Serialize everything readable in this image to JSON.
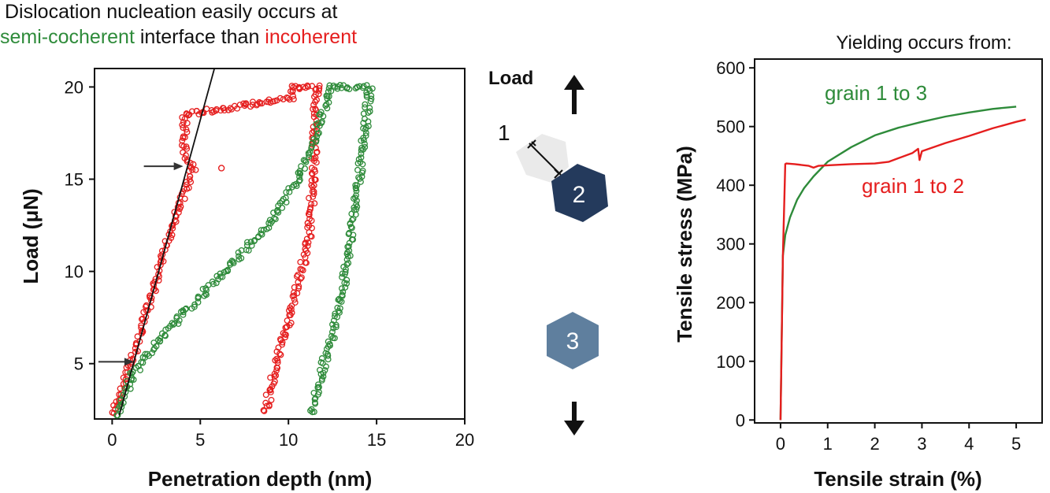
{
  "headline": {
    "line1": "Dislocation nucleation easily occurs at",
    "green_part": "semi-cocherent",
    "middle_part": " interface than ",
    "red_part": "incoherent"
  },
  "schematic": {
    "load_label": "Load",
    "grain1_label": "1",
    "grain2_label": "2",
    "grain3_label": "3"
  },
  "colors": {
    "semi_coherent": "#2e8b3a",
    "incoherent": "#e51e1e",
    "grain2": "#243a5c",
    "grain3": "#5f7f9e",
    "grain1": "#e6e6e6"
  },
  "chart_data": [
    {
      "type": "scatter",
      "xlabel": "Penetration depth (nm)",
      "ylabel": "Load (μN)",
      "xlim": [
        -1,
        20
      ],
      "ylim": [
        2,
        21
      ],
      "xticks": [
        "0",
        "5",
        "10",
        "15",
        "20"
      ],
      "yticks": [
        "5",
        "10",
        "15",
        "20"
      ],
      "series": [
        {
          "color": "#e51e1e",
          "loading": [
            [
              0.1,
              2.3
            ],
            [
              1,
              4.8
            ],
            [
              2,
              7.9
            ],
            [
              2.8,
              10.4
            ],
            [
              3.5,
              12.8
            ],
            [
              4.2,
              14.5
            ],
            [
              4.6,
              15.6
            ],
            [
              4.1,
              16.3
            ],
            [
              4.1,
              18.5
            ],
            [
              10.2,
              19.4
            ],
            [
              10.3,
              20
            ]
          ],
          "plateau": [
            [
              10.3,
              20
            ],
            [
              11.6,
              20
            ]
          ],
          "unloading": [
            [
              11.6,
              20
            ],
            [
              11.5,
              17
            ],
            [
              11.2,
              12
            ],
            [
              10.2,
              8
            ],
            [
              9.3,
              5
            ],
            [
              8.7,
              2.4
            ]
          ],
          "isolated": [
            [
              4.6,
              15.8
            ],
            [
              6.2,
              15.6
            ]
          ]
        },
        {
          "color": "#2e8b3a",
          "loading": [
            [
              0.3,
              2.2
            ],
            [
              1.2,
              4.5
            ],
            [
              3.5,
              7.2
            ],
            [
              6,
              9.6
            ],
            [
              9,
              12.7
            ],
            [
              10.5,
              15
            ],
            [
              11.4,
              17
            ],
            [
              12.3,
              19.6
            ],
            [
              12.5,
              20
            ]
          ],
          "plateau": [
            [
              12.5,
              20
            ],
            [
              14.6,
              20
            ]
          ],
          "unloading": [
            [
              14.6,
              20
            ],
            [
              14.4,
              18
            ],
            [
              13.7,
              13
            ],
            [
              12.9,
              8
            ],
            [
              12,
              5
            ],
            [
              11.3,
              2.3
            ]
          ]
        }
      ],
      "fit_line": [
        [
          0.4,
          2.2
        ],
        [
          5.8,
          21
        ]
      ],
      "annotations": [
        {
          "type": "arrow",
          "at": [
            4.3,
            15.7
          ]
        },
        {
          "type": "arrow",
          "at": [
            1.5,
            5.1
          ]
        }
      ]
    },
    {
      "type": "line",
      "title": "Yielding occurs from:",
      "xlabel": "Tensile strain (%)",
      "ylabel": "Tensile stress (MPa)",
      "xlim": [
        -0.55,
        5.55
      ],
      "ylim": [
        -5,
        615
      ],
      "xticks": [
        "0",
        "1",
        "2",
        "3",
        "4",
        "5"
      ],
      "yticks": [
        "0",
        "100",
        "200",
        "300",
        "400",
        "500",
        "600"
      ],
      "series": [
        {
          "name": "grain 1 to 3",
          "color": "#2e8b3a",
          "x": [
            0,
            0.05,
            0.1,
            0.2,
            0.35,
            0.5,
            0.7,
            1.0,
            1.5,
            2.0,
            2.5,
            3.0,
            3.5,
            4.0,
            4.5,
            5.0
          ],
          "y": [
            0,
            280,
            315,
            345,
            375,
            395,
            415,
            440,
            465,
            485,
            498,
            508,
            517,
            524,
            530,
            534
          ]
        },
        {
          "name": "grain 1 to 2",
          "color": "#e51e1e",
          "x": [
            0,
            0.05,
            0.1,
            0.12,
            0.3,
            0.6,
            0.7,
            0.8,
            1.0,
            1.5,
            2.0,
            2.3,
            2.5,
            2.8,
            2.92,
            2.95,
            3.0,
            3.5,
            4.0,
            4.5,
            5.0,
            5.2
          ],
          "y": [
            0,
            280,
            436,
            437,
            436,
            433,
            430,
            433,
            434,
            436,
            437,
            440,
            446,
            455,
            462,
            443,
            458,
            472,
            484,
            497,
            508,
            512
          ]
        }
      ]
    }
  ]
}
